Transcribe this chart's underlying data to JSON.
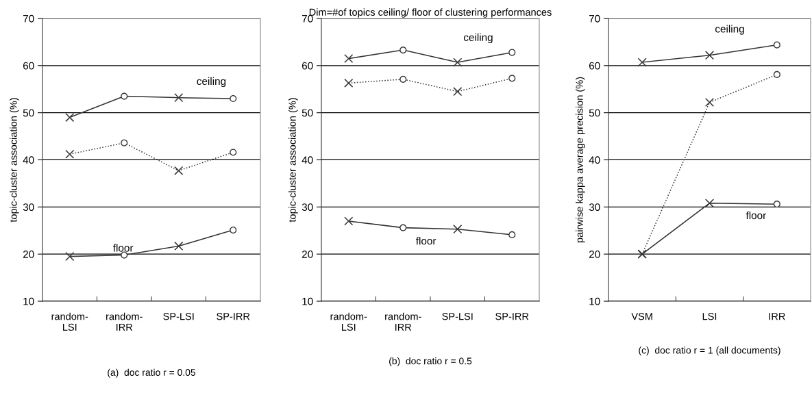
{
  "chart_data": [
    {
      "type": "line",
      "xlabel": "(a)  doc ratio r = 0.05",
      "ylabel": "topic-cluster association (%)",
      "categories": [
        "random-\nLSI",
        "random-\nIRR",
        "SP-LSI",
        "SP-IRR"
      ],
      "ylim": [
        10,
        70
      ],
      "yticks": [
        10,
        20,
        30,
        40,
        50,
        60,
        70
      ],
      "grid": "y",
      "legend": false,
      "series": [
        {
          "color": "#333333",
          "line_style": "solid",
          "marker": "none",
          "values": [
            49.0,
            53.5,
            53.2,
            53.0
          ]
        },
        {
          "color": "#333333",
          "line_style": "dotted",
          "marker": "none",
          "values": [
            41.2,
            43.6,
            37.7,
            41.6
          ]
        },
        {
          "color": "#333333",
          "line_style": "solid",
          "marker": "none",
          "values": [
            19.5,
            19.8,
            21.7,
            25.1
          ]
        },
        {
          "type": "scatter",
          "color": "#333333",
          "marker": "cross",
          "values": [
            49.0,
            null,
            53.2,
            null
          ]
        },
        {
          "type": "scatter",
          "color": "#333333",
          "marker": "circle",
          "values": [
            null,
            53.5,
            null,
            53.0
          ]
        },
        {
          "type": "scatter",
          "color": "#333333",
          "marker": "cross",
          "values": [
            41.2,
            null,
            37.7,
            null
          ]
        },
        {
          "type": "scatter",
          "color": "#333333",
          "marker": "circle",
          "values": [
            null,
            43.6,
            null,
            41.6
          ]
        },
        {
          "type": "scatter",
          "color": "#333333",
          "marker": "cross",
          "values": [
            19.5,
            null,
            21.7,
            null
          ]
        },
        {
          "type": "scatter",
          "color": "#333333",
          "marker": "circle",
          "values": [
            null,
            19.8,
            null,
            25.1
          ]
        }
      ],
      "annotations": [
        "ceiling",
        "floor"
      ]
    },
    {
      "type": "line",
      "title": "Dim=#of topics ceiling/ floor of clustering performances",
      "xlabel": "(b)  doc ratio r = 0.5",
      "ylabel": "topic-cluster association (%)",
      "categories": [
        "random-\nLSI",
        "random-\nIRR",
        "SP-LSI",
        "SP-IRR"
      ],
      "ylim": [
        10,
        70
      ],
      "yticks": [
        10,
        20,
        30,
        40,
        50,
        60,
        70
      ],
      "grid": "y",
      "legend": false,
      "series": [
        {
          "color": "#333333",
          "line_style": "solid",
          "marker": "none",
          "values": [
            61.5,
            63.3,
            60.7,
            62.8
          ]
        },
        {
          "color": "#333333",
          "line_style": "dotted",
          "marker": "none",
          "values": [
            56.3,
            57.1,
            54.5,
            57.3
          ]
        },
        {
          "color": "#333333",
          "line_style": "solid",
          "marker": "none",
          "values": [
            27.0,
            25.6,
            25.3,
            24.1
          ]
        },
        {
          "type": "scatter",
          "color": "#333333",
          "marker": "cross",
          "values": [
            61.5,
            null,
            60.7,
            null
          ]
        },
        {
          "type": "scatter",
          "color": "#333333",
          "marker": "circle",
          "values": [
            null,
            63.3,
            null,
            62.8
          ]
        },
        {
          "type": "scatter",
          "color": "#333333",
          "marker": "cross",
          "values": [
            56.3,
            null,
            54.5,
            null
          ]
        },
        {
          "type": "scatter",
          "color": "#333333",
          "marker": "circle",
          "values": [
            null,
            57.1,
            null,
            57.3
          ]
        },
        {
          "type": "scatter",
          "color": "#333333",
          "marker": "cross",
          "values": [
            27.0,
            null,
            25.3,
            null
          ]
        },
        {
          "type": "scatter",
          "color": "#333333",
          "marker": "circle",
          "values": [
            null,
            25.6,
            null,
            24.1
          ]
        }
      ],
      "annotations": [
        "ceiling",
        "floor"
      ]
    },
    {
      "type": "line",
      "xlabel": "(c)  doc ratio r = 1 (all documents)",
      "ylabel": "pairwise kappa average precision (%)",
      "categories": [
        "VSM",
        "LSI",
        "IRR"
      ],
      "ylim": [
        10,
        70
      ],
      "yticks": [
        10,
        20,
        30,
        40,
        50,
        60,
        70
      ],
      "grid": "y",
      "legend": false,
      "series": [
        {
          "color": "#333333",
          "line_style": "solid",
          "marker": "none",
          "values": [
            60.7,
            62.2,
            64.4
          ]
        },
        {
          "color": "#333333",
          "line_style": "dotted",
          "marker": "none",
          "values": [
            20.0,
            52.2,
            58.1
          ]
        },
        {
          "color": "#333333",
          "line_style": "solid",
          "marker": "none",
          "values": [
            20.0,
            30.8,
            30.6
          ]
        },
        {
          "type": "scatter",
          "color": "#333333",
          "marker": "cross",
          "values": [
            60.7,
            62.2,
            null
          ]
        },
        {
          "type": "scatter",
          "color": "#333333",
          "marker": "circle",
          "values": [
            null,
            null,
            64.4
          ]
        },
        {
          "type": "scatter",
          "color": "#333333",
          "marker": "cross",
          "values": [
            20.0,
            52.2,
            null
          ]
        },
        {
          "type": "scatter",
          "color": "#333333",
          "marker": "circle",
          "values": [
            null,
            null,
            58.1
          ]
        },
        {
          "type": "scatter",
          "color": "#333333",
          "marker": "cross",
          "values": [
            20.0,
            30.8,
            null
          ]
        },
        {
          "type": "scatter",
          "color": "#333333",
          "marker": "circle",
          "values": [
            null,
            null,
            30.6
          ]
        }
      ],
      "annotations": [
        "ceiling",
        "floor"
      ]
    }
  ]
}
